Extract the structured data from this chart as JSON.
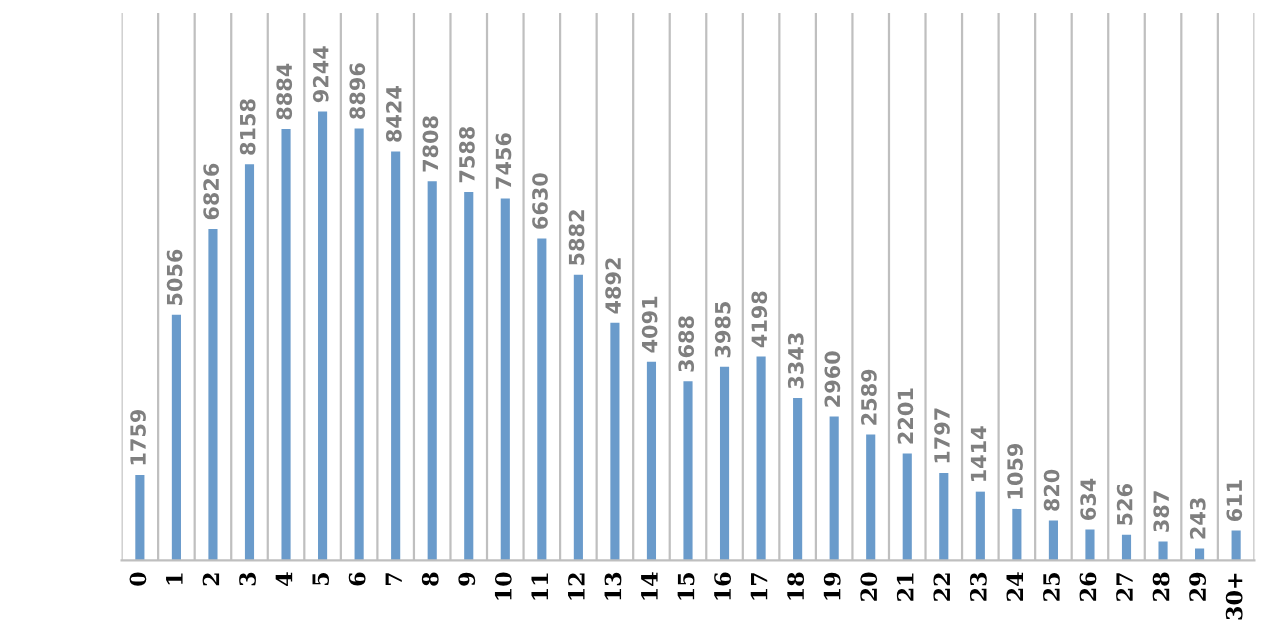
{
  "chart_data": {
    "type": "bar",
    "categories": [
      "0",
      "1",
      "2",
      "3",
      "4",
      "5",
      "6",
      "7",
      "8",
      "9",
      "10",
      "11",
      "12",
      "13",
      "14",
      "15",
      "16",
      "17",
      "18",
      "19",
      "20",
      "21",
      "22",
      "23",
      "24",
      "25",
      "26",
      "27",
      "28",
      "29",
      "30+"
    ],
    "values": [
      1759,
      5056,
      6826,
      8158,
      8884,
      9244,
      8896,
      8424,
      7808,
      7588,
      7456,
      6630,
      5882,
      4892,
      4091,
      3688,
      3985,
      4198,
      3343,
      2960,
      2589,
      2201,
      1797,
      1414,
      1059,
      820,
      634,
      526,
      387,
      243,
      611
    ],
    "color": "#6a9bcb",
    "data_labels": true,
    "grid": "x"
  }
}
